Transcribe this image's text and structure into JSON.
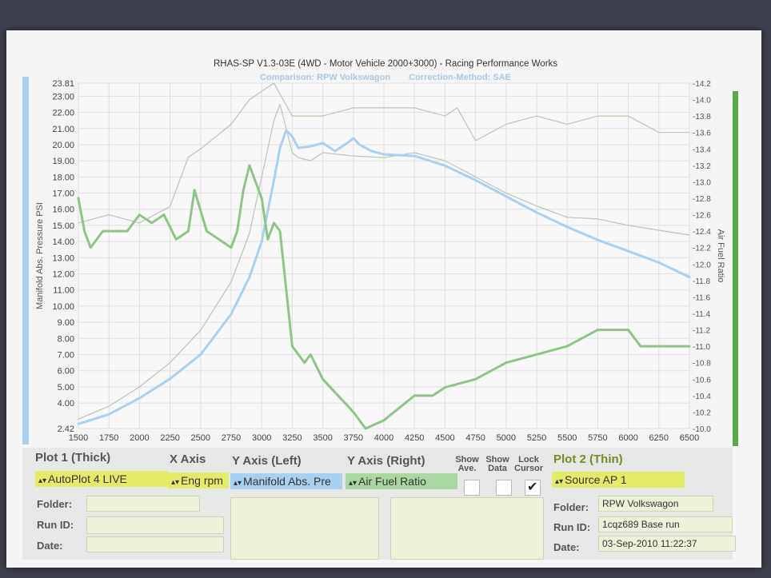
{
  "chart_data": {
    "type": "line",
    "title": "RHAS-SP V1.3-03E  (4WD - Motor Vehicle 2000+3000) - Racing Performance Works",
    "subtitle": [
      "Comparison: RPW Volkswagon",
      "Correction-Method: SAE"
    ],
    "ylabel": "Manifold Abs. Pressure PSI",
    "y2label": "Air Fuel Ratio",
    "xlim": [
      1500,
      6500
    ],
    "ylim": [
      2.42,
      23.81
    ],
    "y2lim": [
      10.0,
      14.2
    ],
    "x_ticks": [
      "1500",
      "1750",
      "2000",
      "2250",
      "2500",
      "2750",
      "3000",
      "3250",
      "3500",
      "3750",
      "4000",
      "4250",
      "4500",
      "4750",
      "5000",
      "5250",
      "5500",
      "5750",
      "6000",
      "6250",
      "6500"
    ],
    "y_ticks": [
      "2.42",
      "4.00",
      "5.00",
      "6.00",
      "7.00",
      "8.00",
      "9.00",
      "10.00",
      "11.00",
      "12.00",
      "13.00",
      "14.00",
      "15.00",
      "16.00",
      "17.00",
      "18.00",
      "19.00",
      "20.00",
      "21.00",
      "22.00",
      "23.00",
      "23.81"
    ],
    "y2_ticks": [
      "10.0",
      "10.2",
      "10.4",
      "10.6",
      "10.8",
      "11.0",
      "11.2",
      "11.4",
      "11.6",
      "11.8",
      "12.0",
      "12.2",
      "12.4",
      "12.6",
      "12.8",
      "13.0",
      "13.2",
      "13.4",
      "13.6",
      "13.8",
      "14.0",
      "14.2"
    ],
    "grid": true,
    "series": [
      {
        "axis": "left",
        "color": "#a8d0f0",
        "thick": true,
        "points": [
          [
            1500,
            2.7
          ],
          [
            1750,
            3.3
          ],
          [
            2000,
            4.3
          ],
          [
            2250,
            5.5
          ],
          [
            2500,
            7.0
          ],
          [
            2750,
            9.5
          ],
          [
            2900,
            11.8
          ],
          [
            3000,
            14.0
          ],
          [
            3100,
            17.8
          ],
          [
            3150,
            19.8
          ],
          [
            3200,
            20.9
          ],
          [
            3250,
            20.5
          ],
          [
            3300,
            19.8
          ],
          [
            3400,
            19.9
          ],
          [
            3500,
            20.1
          ],
          [
            3600,
            19.6
          ],
          [
            3700,
            20.1
          ],
          [
            3750,
            20.4
          ],
          [
            3800,
            20.0
          ],
          [
            3900,
            19.6
          ],
          [
            4000,
            19.4
          ],
          [
            4250,
            19.3
          ],
          [
            4500,
            18.7
          ],
          [
            4750,
            17.8
          ],
          [
            5000,
            16.8
          ],
          [
            5250,
            15.8
          ],
          [
            5500,
            14.9
          ],
          [
            5750,
            14.1
          ],
          [
            6000,
            13.4
          ],
          [
            6250,
            12.7
          ],
          [
            6500,
            11.8
          ]
        ]
      },
      {
        "axis": "left",
        "color": "#b8c8b4",
        "thick": false,
        "points": [
          [
            1500,
            3.0
          ],
          [
            1750,
            3.8
          ],
          [
            2000,
            5.0
          ],
          [
            2250,
            6.5
          ],
          [
            2500,
            8.5
          ],
          [
            2750,
            11.5
          ],
          [
            2900,
            14.5
          ],
          [
            3000,
            18.0
          ],
          [
            3100,
            21.5
          ],
          [
            3150,
            22.5
          ],
          [
            3200,
            21.0
          ],
          [
            3250,
            19.5
          ],
          [
            3300,
            19.2
          ],
          [
            3400,
            19.0
          ],
          [
            3500,
            19.5
          ],
          [
            3750,
            19.3
          ],
          [
            4000,
            19.2
          ],
          [
            4250,
            19.5
          ],
          [
            4500,
            19.0
          ],
          [
            4750,
            18.0
          ],
          [
            5000,
            17.0
          ],
          [
            5250,
            16.2
          ],
          [
            5500,
            15.5
          ],
          [
            5750,
            15.4
          ],
          [
            6000,
            15.0
          ],
          [
            6250,
            14.7
          ],
          [
            6500,
            14.4
          ]
        ]
      },
      {
        "axis": "right",
        "color": "#8fc487",
        "thick": true,
        "points": [
          [
            1500,
            12.8
          ],
          [
            1550,
            12.4
          ],
          [
            1600,
            12.2
          ],
          [
            1700,
            12.4
          ],
          [
            1800,
            12.4
          ],
          [
            1900,
            12.4
          ],
          [
            2000,
            12.6
          ],
          [
            2100,
            12.5
          ],
          [
            2200,
            12.6
          ],
          [
            2300,
            12.3
          ],
          [
            2400,
            12.4
          ],
          [
            2450,
            12.9
          ],
          [
            2550,
            12.4
          ],
          [
            2650,
            12.3
          ],
          [
            2750,
            12.2
          ],
          [
            2800,
            12.4
          ],
          [
            2850,
            12.9
          ],
          [
            2900,
            13.2
          ],
          [
            3000,
            12.8
          ],
          [
            3050,
            12.3
          ],
          [
            3100,
            12.5
          ],
          [
            3150,
            12.4
          ],
          [
            3250,
            11.0
          ],
          [
            3350,
            10.8
          ],
          [
            3400,
            10.9
          ],
          [
            3500,
            10.6
          ],
          [
            3750,
            10.2
          ],
          [
            3850,
            10.0
          ],
          [
            4000,
            10.1
          ],
          [
            4250,
            10.4
          ],
          [
            4400,
            10.4
          ],
          [
            4500,
            10.5
          ],
          [
            4750,
            10.6
          ],
          [
            5000,
            10.8
          ],
          [
            5250,
            10.9
          ],
          [
            5500,
            11.0
          ],
          [
            5750,
            11.2
          ],
          [
            5900,
            11.2
          ],
          [
            6000,
            11.2
          ],
          [
            6100,
            11.0
          ],
          [
            6300,
            11.0
          ],
          [
            6400,
            11.0
          ],
          [
            6500,
            11.0
          ]
        ]
      },
      {
        "axis": "right",
        "color": "#b8c8b4",
        "thick": false,
        "points": [
          [
            1500,
            12.5
          ],
          [
            1750,
            12.6
          ],
          [
            2000,
            12.5
          ],
          [
            2250,
            12.7
          ],
          [
            2400,
            13.3
          ],
          [
            2500,
            13.4
          ],
          [
            2750,
            13.7
          ],
          [
            2900,
            14.0
          ],
          [
            3000,
            14.1
          ],
          [
            3100,
            14.2
          ],
          [
            3250,
            13.8
          ],
          [
            3500,
            13.8
          ],
          [
            3750,
            13.9
          ],
          [
            4000,
            13.9
          ],
          [
            4250,
            13.9
          ],
          [
            4500,
            13.8
          ],
          [
            4600,
            13.9
          ],
          [
            4750,
            13.5
          ],
          [
            5000,
            13.7
          ],
          [
            5250,
            13.8
          ],
          [
            5500,
            13.7
          ],
          [
            5750,
            13.8
          ],
          [
            6000,
            13.8
          ],
          [
            6250,
            13.6
          ],
          [
            6500,
            13.6
          ]
        ]
      }
    ]
  },
  "panel": {
    "plot1_label": "Plot 1 (Thick)",
    "xaxis_label": "X Axis",
    "yleft_label": "Y Axis (Left)",
    "yright_label": "Y Axis (Right)",
    "show_ave_label": "Show Ave.",
    "show_data_label": "Show Data",
    "lock_cursor_label": "Lock Cursor",
    "plot2_label": "Plot 2 (Thin)",
    "plot1_value": "AutoPlot 4 LIVE",
    "xaxis_value": "Eng rpm",
    "yleft_value": "Manifold Abs. Pre",
    "yright_value": "Air Fuel Ratio",
    "plot2_value": "Source AP 1",
    "folder_label": "Folder:",
    "runid_label": "Run ID:",
    "date_label": "Date:",
    "folder2_label": "Folder:",
    "runid2_label": "Run ID:",
    "date2_label": "Date:",
    "folder2_value": "RPW Volkswagon",
    "runid2_value": "1cqz689 Base run",
    "date2_value": "03-Sep-2010  11:22:37",
    "show_ave_checked": false,
    "show_data_checked": false,
    "lock_cursor_checked": true
  }
}
